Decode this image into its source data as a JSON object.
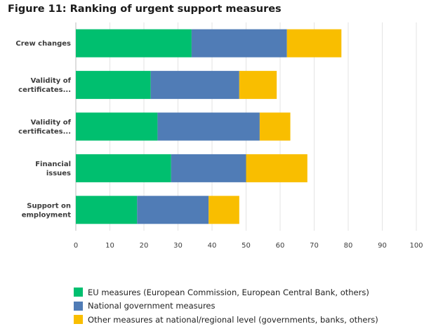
{
  "colors": {
    "eu": "#00bf6f",
    "national": "#507cb6",
    "other": "#f9be00",
    "grid": "#e3e3e3",
    "axis": "#bdbdbd"
  },
  "chart_data": {
    "type": "bar",
    "orientation": "horizontal",
    "stacked": true,
    "title": "Figure 11: Ranking of urgent support measures",
    "categories": [
      [
        "Crew changes"
      ],
      [
        "Validity of",
        "certificates..."
      ],
      [
        "Validity of",
        "certificates..."
      ],
      [
        "Financial",
        "issues"
      ],
      [
        "Support on",
        "employment"
      ]
    ],
    "series": [
      {
        "name": "EU measures (European Commission, European Central Bank, others)",
        "color_key": "eu",
        "values": [
          34,
          22,
          24,
          28,
          18
        ]
      },
      {
        "name": "National government measures",
        "color_key": "national",
        "values": [
          28,
          26,
          30,
          22,
          21
        ]
      },
      {
        "name": "Other measures at national/regional level (governments, banks, others)",
        "color_key": "other",
        "values": [
          16,
          11,
          9,
          18,
          9
        ]
      }
    ],
    "xlim": [
      0,
      100
    ],
    "xticks": [
      0,
      10,
      20,
      30,
      40,
      50,
      60,
      70,
      80,
      90,
      100
    ],
    "grid": true,
    "legend_position": "bottom"
  }
}
